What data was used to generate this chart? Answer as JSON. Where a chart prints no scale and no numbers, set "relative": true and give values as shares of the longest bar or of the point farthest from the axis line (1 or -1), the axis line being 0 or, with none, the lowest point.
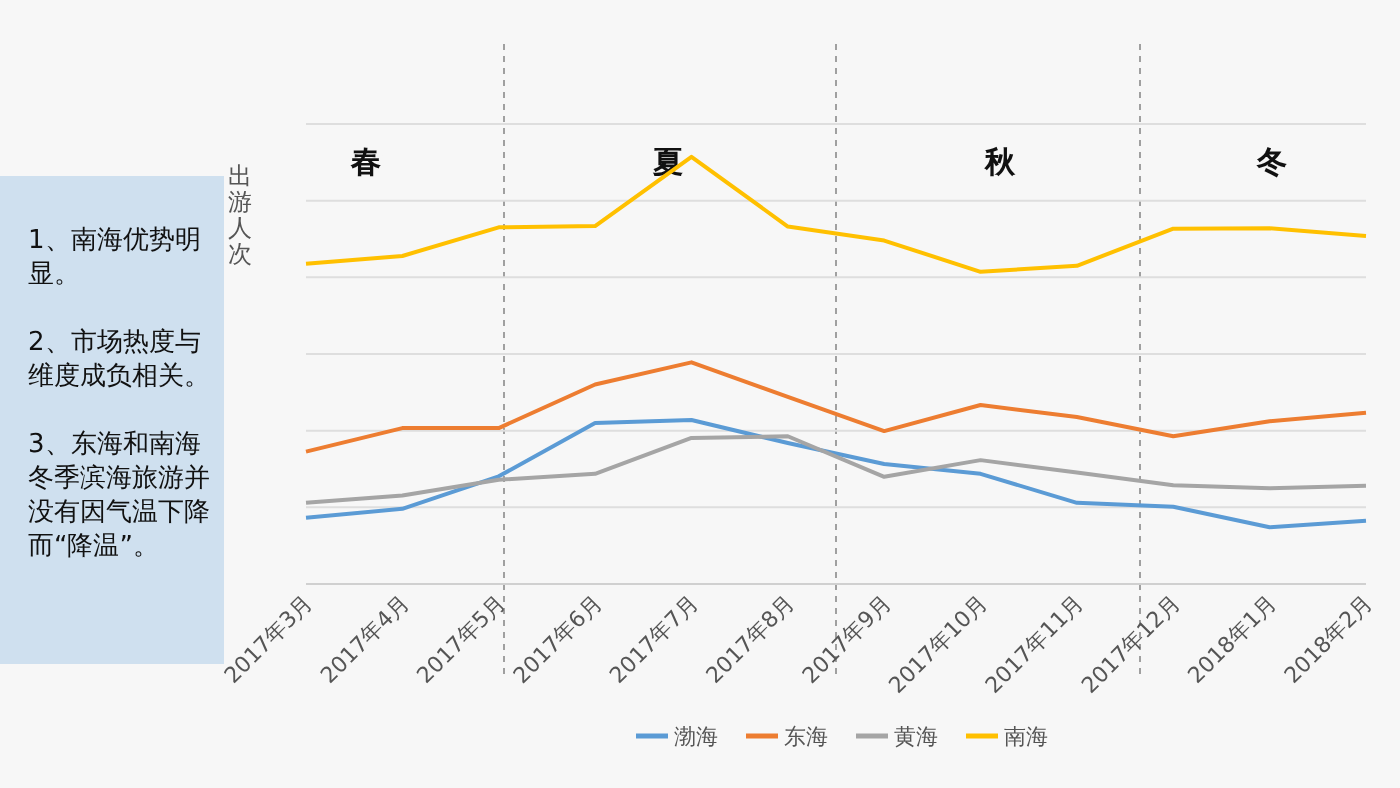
{
  "chart_data": {
    "type": "line",
    "relative": true,
    "ylabel": "出游人次",
    "categories": [
      "2017年3月",
      "2017年4月",
      "2017年5月",
      "2017年6月",
      "2017年7月",
      "2017年8月",
      "2017年9月",
      "2017年10月",
      "2017年11月",
      "2017年12月",
      "2018年1月",
      "2018年2月"
    ],
    "series": [
      {
        "name": "渤海",
        "color": "#5b9bd5",
        "values": [
          0.155,
          0.176,
          0.252,
          0.377,
          0.384,
          0.33,
          0.281,
          0.258,
          0.19,
          0.181,
          0.133,
          0.148
        ]
      },
      {
        "name": "东海",
        "color": "#ed7d31",
        "values": [
          0.31,
          0.365,
          0.365,
          0.467,
          0.519,
          0.438,
          0.358,
          0.419,
          0.391,
          0.346,
          0.381,
          0.401
        ]
      },
      {
        "name": "黄海",
        "color": "#a5a5a5",
        "values": [
          0.19,
          0.207,
          0.244,
          0.258,
          0.342,
          0.346,
          0.251,
          0.29,
          0.261,
          0.231,
          0.224,
          0.23
        ]
      },
      {
        "name": "南海",
        "color": "#ffc000",
        "values": [
          0.75,
          0.768,
          0.835,
          0.838,
          1,
          0.837,
          0.804,
          0.731,
          0.745,
          0.832,
          0.833,
          0.815
        ]
      }
    ],
    "annotations": [
      "1、南海优势明显。\n\n2、市场热度与维度成负相关。\n\n3、东海和南海冬季滨海旅游并没有因气温下降而“降温”。",
      "春",
      "夏",
      "秋",
      "冬"
    ],
    "grid": true,
    "legend": "bottom",
    "line_style": "solid",
    "marker": "none"
  }
}
